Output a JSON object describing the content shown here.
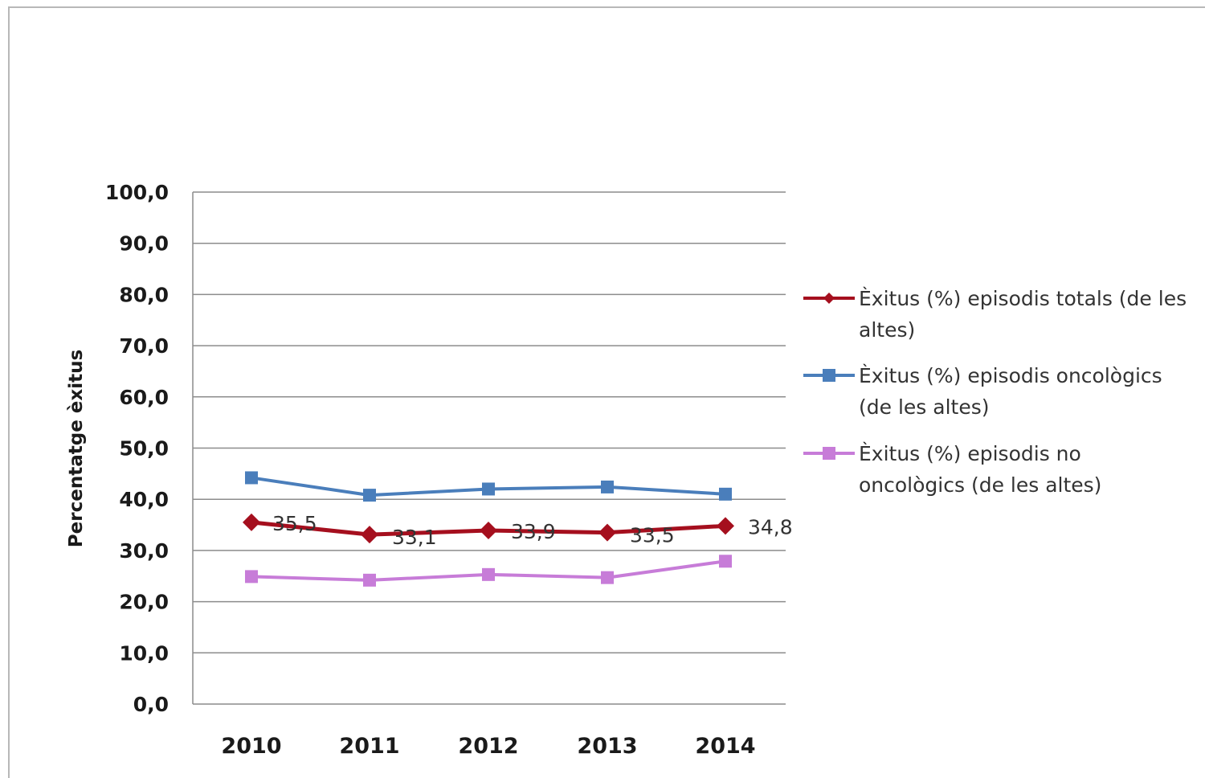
{
  "chart_data": {
    "type": "line",
    "title": "",
    "xlabel": "",
    "ylabel": "Percentatge èxitus",
    "categories": [
      "2010",
      "2011",
      "2012",
      "2013",
      "2014"
    ],
    "ylim": [
      0,
      100
    ],
    "yticks": [
      "0,0",
      "10,0",
      "20,0",
      "30,0",
      "40,0",
      "50,0",
      "60,0",
      "70,0",
      "80,0",
      "90,0",
      "100,0"
    ],
    "grid": true,
    "legend_position": "right",
    "series": [
      {
        "name": "Èxitus (%) episodis totals (de les altes)",
        "legend_lines": [
          "Èxitus (%) episodis totals (de les",
          "altes)"
        ],
        "values": [
          35.5,
          33.1,
          33.9,
          33.5,
          34.8
        ],
        "data_labels": [
          "35,5",
          "33,1",
          "33,9",
          "33,5",
          "34,8"
        ],
        "color": "#a50f1e",
        "marker": "diamond"
      },
      {
        "name": "Èxitus (%) episodis oncològics (de les altes)",
        "legend_lines": [
          "Èxitus (%) episodis oncològics",
          "(de les altes)"
        ],
        "values": [
          44.2,
          40.8,
          42.0,
          42.4,
          41.0
        ],
        "data_labels": [],
        "color": "#4a7ebb",
        "marker": "square"
      },
      {
        "name": "Èxitus (%) episodis no oncològics (de les altes)",
        "legend_lines": [
          "Èxitus (%) episodis no",
          "oncològics (de les altes)"
        ],
        "values": [
          24.9,
          24.2,
          25.3,
          24.7,
          27.9
        ],
        "data_labels": [],
        "color": "#c77cd8",
        "marker": "square"
      }
    ]
  }
}
